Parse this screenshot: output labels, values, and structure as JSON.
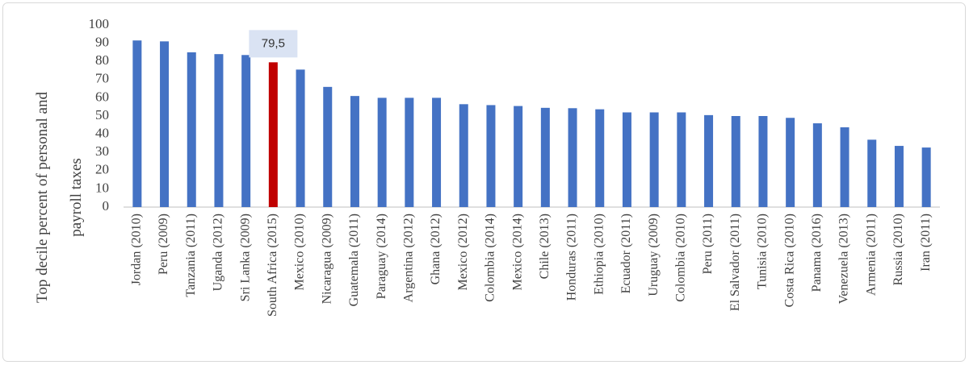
{
  "chart_data": {
    "type": "bar",
    "y_label": [
      "Top decile percent of personal and",
      "payroll taxes"
    ],
    "categories": [
      "Jordan (2010)",
      "Peru (2009)",
      "Tanzania (2011)",
      "Uganda (2012)",
      "Sri Lanka (2009)",
      "South Africa (2015)",
      "Mexico (2010)",
      "Nicaragua (2009)",
      "Guatemala (2011)",
      "Paraguay (2014)",
      "Argentina (2012)",
      "Ghana (2012)",
      "Mexico (2012)",
      "Colombia (2014)",
      "Mexico (2014)",
      "Chile (2013)",
      "Honduras (2011)",
      "Ethiopia (2010)",
      "Ecuador (2011)",
      "Uruguay (2009)",
      "Colombia (2010)",
      "Peru (2011)",
      "El Salvador (2011)",
      "Tunisia (2010)",
      "Costa Rica (2010)",
      "Panama (2016)",
      "Venezuela (2013)",
      "Armenia (2011)",
      "Russia (2010)",
      "Iran (2011)"
    ],
    "values": [
      91.5,
      91,
      85,
      84,
      83.5,
      79.5,
      75.5,
      66,
      61,
      60,
      60,
      60,
      56.5,
      56,
      55.5,
      54.5,
      54.3,
      53.7,
      52,
      52,
      52,
      50.5,
      50,
      50,
      49,
      46,
      43.8,
      37,
      33.6,
      32.7
    ],
    "value_labels": [
      null,
      null,
      null,
      null,
      null,
      "79,5",
      null,
      null,
      null,
      null,
      null,
      null,
      null,
      null,
      null,
      null,
      null,
      null,
      null,
      null,
      null,
      null,
      null,
      null,
      null,
      null,
      null,
      null,
      null,
      null
    ],
    "colors": [
      "#4472c4",
      "#4472c4",
      "#4472c4",
      "#4472c4",
      "#4472c4",
      "#c00000",
      "#4472c4",
      "#4472c4",
      "#4472c4",
      "#4472c4",
      "#4472c4",
      "#4472c4",
      "#4472c4",
      "#4472c4",
      "#4472c4",
      "#4472c4",
      "#4472c4",
      "#4472c4",
      "#4472c4",
      "#4472c4",
      "#4472c4",
      "#4472c4",
      "#4472c4",
      "#4472c4",
      "#4472c4",
      "#4472c4",
      "#4472c4",
      "#4472c4",
      "#4472c4",
      "#4472c4"
    ],
    "ylim": [
      0,
      100
    ],
    "yticks": [
      0,
      10,
      20,
      30,
      40,
      50,
      60,
      70,
      80,
      90,
      100
    ],
    "grid": false
  }
}
